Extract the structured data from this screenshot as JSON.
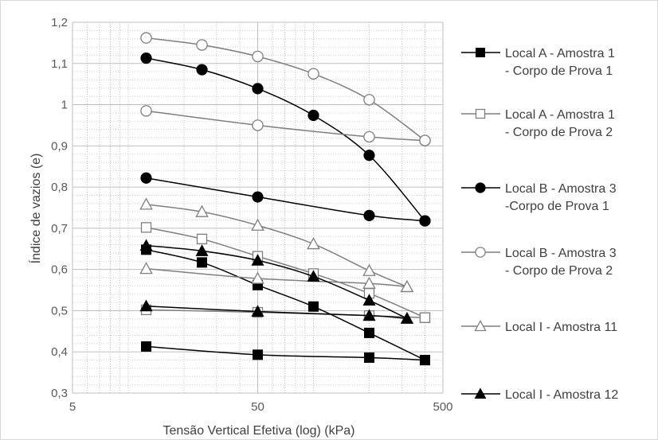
{
  "chart_data": {
    "type": "line",
    "x_scale": "log",
    "xlabel": "Tensão Vertical Efetiva (log) (kPa)",
    "ylabel": "Índice de vazios (e)",
    "xlim": [
      5,
      500
    ],
    "ylim": [
      0.3,
      1.2
    ],
    "x_ticks": [
      "5",
      "50",
      "500"
    ],
    "y_ticks": [
      "0,3",
      "0,4",
      "0,5",
      "0,6",
      "0,7",
      "0,8",
      "0,9",
      "1",
      "1,1",
      "1,2"
    ],
    "grid": true,
    "legend_position": "right",
    "series": [
      {
        "name": "Local A - Amostra 1 - Corpo de Prova 1",
        "legend_lines": [
          "Local A - Amostra 1",
          " - Corpo de Prova 1"
        ],
        "marker": "square",
        "filled": true,
        "color": "#000000",
        "segments": [
          [
            [
              12.5,
              0.413
            ],
            [
              50,
              0.393
            ],
            [
              200,
              0.386
            ],
            [
              400,
              0.38
            ]
          ],
          [
            [
              12.5,
              0.648
            ],
            [
              25,
              0.617
            ],
            [
              50,
              0.562
            ],
            [
              100,
              0.51
            ],
            [
              200,
              0.446
            ],
            [
              400,
              0.38
            ]
          ]
        ]
      },
      {
        "name": "Local A - Amostra 1 - Corpo de Prova 2",
        "legend_lines": [
          "Local A - Amostra 1",
          " - Corpo de Prova 2"
        ],
        "marker": "square",
        "filled": false,
        "color": "#7f7f7f",
        "segments": [
          [
            [
              12.5,
              0.502
            ],
            [
              50,
              0.496
            ],
            [
              200,
              0.488
            ],
            [
              400,
              0.483
            ]
          ],
          [
            [
              12.5,
              0.702
            ],
            [
              25,
              0.674
            ],
            [
              50,
              0.632
            ],
            [
              100,
              0.59
            ],
            [
              200,
              0.542
            ],
            [
              400,
              0.483
            ]
          ]
        ]
      },
      {
        "name": "Local B - Amostra 3 -Corpo de Prova 1",
        "legend_lines": [
          "Local B - Amostra 3",
          "-Corpo de Prova 1"
        ],
        "marker": "circle",
        "filled": true,
        "color": "#000000",
        "segments": [
          [
            [
              12.5,
              0.822
            ],
            [
              50,
              0.776
            ],
            [
              200,
              0.731
            ],
            [
              400,
              0.718
            ]
          ],
          [
            [
              12.5,
              1.113
            ],
            [
              25,
              1.085
            ],
            [
              50,
              1.039
            ],
            [
              100,
              0.974
            ],
            [
              200,
              0.877
            ],
            [
              400,
              0.718
            ]
          ]
        ]
      },
      {
        "name": "Local B - Amostra 3 - Corpo de Prova 2",
        "legend_lines": [
          "Local B - Amostra 3",
          " - Corpo de Prova 2"
        ],
        "marker": "circle",
        "filled": false,
        "color": "#7f7f7f",
        "segments": [
          [
            [
              12.5,
              0.985
            ],
            [
              50,
              0.95
            ],
            [
              200,
              0.922
            ],
            [
              400,
              0.913
            ]
          ],
          [
            [
              12.5,
              1.162
            ],
            [
              25,
              1.145
            ],
            [
              50,
              1.117
            ],
            [
              100,
              1.075
            ],
            [
              200,
              1.012
            ],
            [
              400,
              0.913
            ]
          ]
        ]
      },
      {
        "name": "Local I - Amostra 11",
        "legend_lines": [
          "Local I - Amostra 11"
        ],
        "marker": "triangle",
        "filled": false,
        "color": "#7f7f7f",
        "segments": [
          [
            [
              12.5,
              0.602
            ],
            [
              50,
              0.578
            ],
            [
              200,
              0.566
            ],
            [
              320,
              0.558
            ]
          ],
          [
            [
              12.5,
              0.758
            ],
            [
              25,
              0.74
            ],
            [
              50,
              0.707
            ],
            [
              100,
              0.662
            ],
            [
              200,
              0.597
            ],
            [
              320,
              0.558
            ]
          ]
        ]
      },
      {
        "name": "Local I - Amostra 12",
        "legend_lines": [
          "Local I - Amostra 12"
        ],
        "marker": "triangle",
        "filled": true,
        "color": "#000000",
        "segments": [
          [
            [
              12.5,
              0.511
            ],
            [
              50,
              0.498
            ],
            [
              200,
              0.488
            ],
            [
              320,
              0.481
            ]
          ],
          [
            [
              12.5,
              0.658
            ],
            [
              25,
              0.645
            ],
            [
              50,
              0.622
            ],
            [
              100,
              0.583
            ],
            [
              200,
              0.525
            ],
            [
              320,
              0.481
            ]
          ]
        ]
      }
    ]
  }
}
